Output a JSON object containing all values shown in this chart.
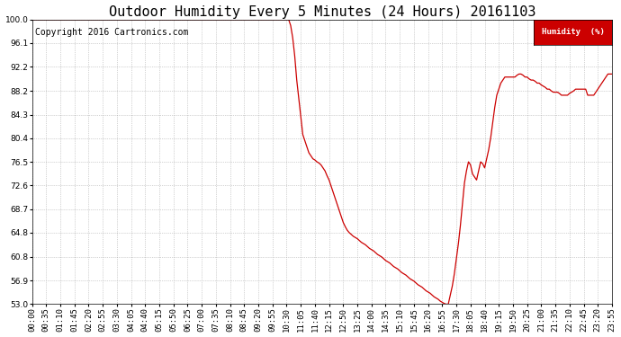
{
  "title": "Outdoor Humidity Every 5 Minutes (24 Hours) 20161103",
  "copyright": "Copyright 2016 Cartronics.com",
  "legend_label": "Humidity  (%)",
  "line_color": "#cc0000",
  "bg_color": "#ffffff",
  "plot_bg_color": "#ffffff",
  "grid_color": "#aaaaaa",
  "ylim": [
    53.0,
    100.0
  ],
  "yticks": [
    53.0,
    56.9,
    60.8,
    64.8,
    68.7,
    72.6,
    76.5,
    80.4,
    84.3,
    88.2,
    92.2,
    96.1,
    100.0
  ],
  "title_fontsize": 11,
  "copyright_fontsize": 7,
  "tick_fontsize": 6.5,
  "tick_interval_minutes": 35,
  "humidity_data": [
    100,
    100,
    100,
    100,
    100,
    100,
    100,
    100,
    100,
    100,
    100,
    100,
    100,
    100,
    100,
    100,
    100,
    100,
    100,
    100,
    100,
    100,
    100,
    100,
    100,
    100,
    100,
    100,
    100,
    100,
    100,
    100,
    100,
    100,
    100,
    100,
    100,
    100,
    100,
    100,
    100,
    100,
    100,
    100,
    100,
    100,
    100,
    100,
    100,
    100,
    100,
    100,
    100,
    100,
    100,
    100,
    100,
    100,
    100,
    100,
    100,
    100,
    100,
    100,
    100,
    100,
    100,
    100,
    100,
    100,
    100,
    100,
    100,
    100,
    100,
    100,
    100,
    100,
    100,
    100,
    100,
    100,
    100,
    100,
    100,
    100,
    100,
    100,
    100,
    100,
    100,
    100,
    100,
    100,
    100,
    100,
    100,
    100,
    100,
    100,
    100,
    100,
    100,
    100,
    100,
    100,
    100,
    100,
    100,
    100,
    100,
    100,
    100,
    100,
    100,
    100,
    100,
    100,
    100,
    100,
    100,
    100,
    100,
    100,
    100,
    100,
    100,
    100,
    99,
    97,
    94,
    90,
    87,
    84,
    81,
    80,
    79,
    78,
    77.5,
    77,
    76.8,
    76.5,
    76.3,
    76,
    75.5,
    75,
    74.2,
    73.5,
    72.5,
    71.5,
    70.5,
    69.5,
    68.5,
    67.5,
    66.5,
    65.8,
    65.2,
    64.8,
    64.5,
    64.2,
    64.0,
    63.8,
    63.5,
    63.2,
    63.0,
    62.8,
    62.5,
    62.2,
    62.0,
    61.8,
    61.5,
    61.2,
    61.0,
    60.8,
    60.5,
    60.2,
    60.0,
    59.8,
    59.5,
    59.2,
    59.0,
    58.8,
    58.5,
    58.2,
    58.0,
    57.8,
    57.5,
    57.2,
    57.0,
    56.8,
    56.5,
    56.2,
    56.0,
    55.8,
    55.5,
    55.2,
    55.0,
    54.8,
    54.5,
    54.2,
    54.0,
    53.8,
    53.5,
    53.3,
    53.1,
    53.0,
    53.0,
    54.5,
    56.0,
    58.0,
    60.5,
    63.0,
    66.0,
    69.5,
    73.0,
    75.0,
    76.5,
    76.0,
    74.5,
    74.0,
    73.5,
    75.0,
    76.5,
    76.2,
    75.5,
    77.0,
    78.5,
    80.5,
    83.0,
    85.5,
    87.5,
    88.5,
    89.5,
    90.0,
    90.5,
    90.5,
    90.5,
    90.5,
    90.5,
    90.5,
    90.8,
    91.0,
    91.0,
    90.8,
    90.5,
    90.5,
    90.2,
    90.0,
    90.0,
    89.8,
    89.5,
    89.5,
    89.2,
    89.0,
    88.8,
    88.5,
    88.5,
    88.2,
    88.0,
    88.0,
    88.0,
    87.8,
    87.5,
    87.5,
    87.5,
    87.5,
    87.8,
    88.0,
    88.2,
    88.5,
    88.5,
    88.5,
    88.5,
    88.5,
    88.5,
    87.5,
    87.5,
    87.5,
    87.5,
    88.0,
    88.5,
    89.0,
    89.5,
    90.0,
    90.5,
    91.0,
    91.0,
    91.0,
    91.2,
    91.5
  ]
}
